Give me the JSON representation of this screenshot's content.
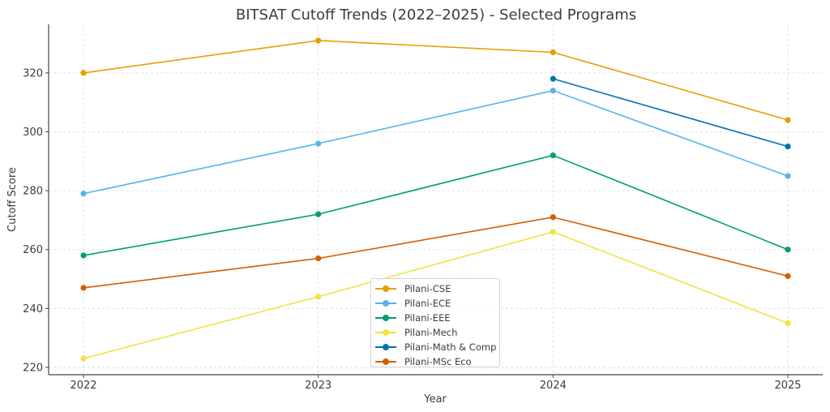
{
  "chart_data": {
    "type": "line",
    "title": "BITSAT Cutoff Trends (2022–2025) - Selected Programs",
    "xlabel": "Year",
    "ylabel": "Cutoff Score",
    "categories": [
      "2022",
      "2023",
      "2024",
      "2025"
    ],
    "x_ticks": [
      "2022",
      "2023",
      "2024",
      "2025"
    ],
    "y_ticks": [
      "220",
      "240",
      "260",
      "280",
      "300",
      "320"
    ],
    "y_tick_values": [
      220,
      240,
      260,
      280,
      300,
      320
    ],
    "ylim": [
      217.5,
      336.5
    ],
    "grid": true,
    "legend_position": "lower-center",
    "series": [
      {
        "name": "Pilani-CSE",
        "color": "#E69F00",
        "values": [
          320,
          331,
          327,
          304
        ]
      },
      {
        "name": "Pilani-ECE",
        "color": "#56B4E9",
        "values": [
          279,
          296,
          314,
          285
        ]
      },
      {
        "name": "Pilani-EEE",
        "color": "#009E73",
        "values": [
          258,
          272,
          292,
          260
        ]
      },
      {
        "name": "Pilani-Mech",
        "color": "#F0E442",
        "values": [
          223,
          244,
          266,
          235
        ]
      },
      {
        "name": "Pilani-Math & Comp",
        "color": "#0072B2",
        "values": [
          null,
          null,
          318,
          295
        ]
      },
      {
        "name": "Pilani-MSc Eco",
        "color": "#D55E00",
        "values": [
          247,
          257,
          271,
          251
        ]
      }
    ]
  }
}
